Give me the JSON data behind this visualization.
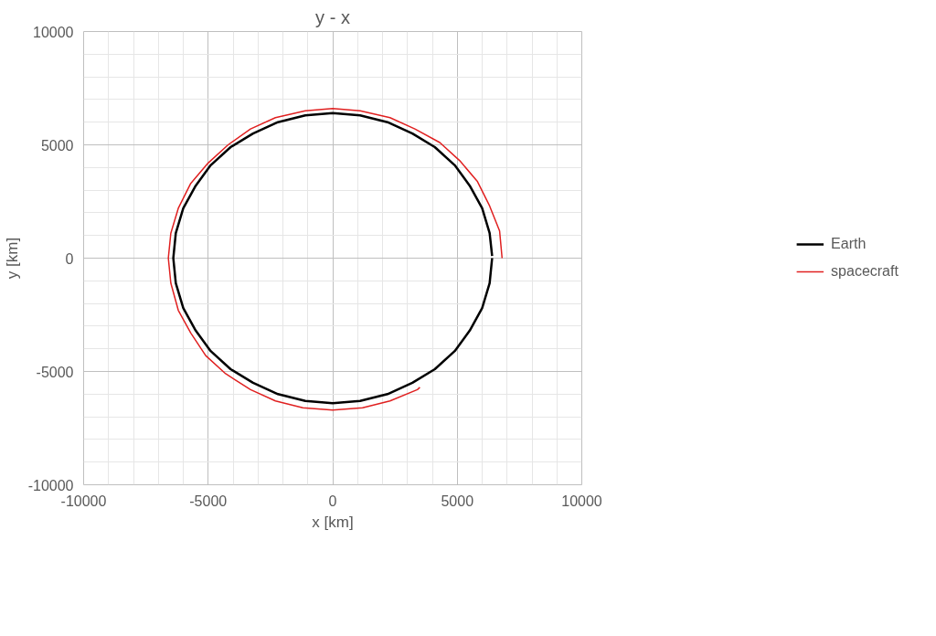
{
  "chart_data": {
    "type": "line",
    "title": "y - x",
    "xlabel": "x [km]",
    "ylabel": "y [km]",
    "xlim": [
      -10000,
      10000
    ],
    "ylim": [
      -10000,
      10000
    ],
    "xticks": [
      -10000,
      -5000,
      0,
      5000,
      10000
    ],
    "yticks": [
      -10000,
      -5000,
      0,
      5000,
      10000
    ],
    "grid": true,
    "legend": "right",
    "line_style": "solid",
    "marker": "none",
    "series": [
      {
        "name": "Earth",
        "color": "#000000",
        "x": [
          6400,
          6300,
          6000,
          5500,
          4900,
          4100,
          3200,
          2200,
          1100,
          0,
          -1100,
          -2200,
          -3200,
          -4100,
          -4900,
          -5500,
          -6000,
          -6300,
          -6400,
          -6300,
          -6000,
          -5500,
          -4900,
          -4100,
          -3200,
          -2200,
          -1100,
          0,
          1100,
          2200,
          3200,
          4100,
          4900,
          5500,
          6000,
          6300,
          6400
        ],
        "values": [
          100,
          1100,
          2200,
          3200,
          4100,
          4900,
          5500,
          6000,
          6300,
          6400,
          6300,
          6000,
          5500,
          4900,
          4100,
          3200,
          2200,
          1100,
          0,
          -1100,
          -2200,
          -3200,
          -4100,
          -4900,
          -5500,
          -6000,
          -6300,
          -6400,
          -6300,
          -6000,
          -5500,
          -4900,
          -4100,
          -3200,
          -2200,
          -1100,
          0
        ]
      },
      {
        "name": "spacecraft",
        "color": "#e02020",
        "x": [
          6800,
          6700,
          6300,
          5800,
          5100,
          4300,
          3300,
          2300,
          1100,
          0,
          -1100,
          -2300,
          -3300,
          -4200,
          -5000,
          -5700,
          -6200,
          -6500,
          -6600,
          -6500,
          -6200,
          -5700,
          -5100,
          -4300,
          -3300,
          -2300,
          -1200,
          0,
          1200,
          2300,
          3400,
          3500
        ],
        "values": [
          0,
          1200,
          2300,
          3400,
          4300,
          5100,
          5700,
          6200,
          6500,
          6600,
          6500,
          6200,
          5700,
          5000,
          4200,
          3300,
          2200,
          1100,
          0,
          -1100,
          -2300,
          -3300,
          -4300,
          -5100,
          -5800,
          -6300,
          -6600,
          -6700,
          -6600,
          -6300,
          -5800,
          -5700
        ]
      }
    ]
  }
}
